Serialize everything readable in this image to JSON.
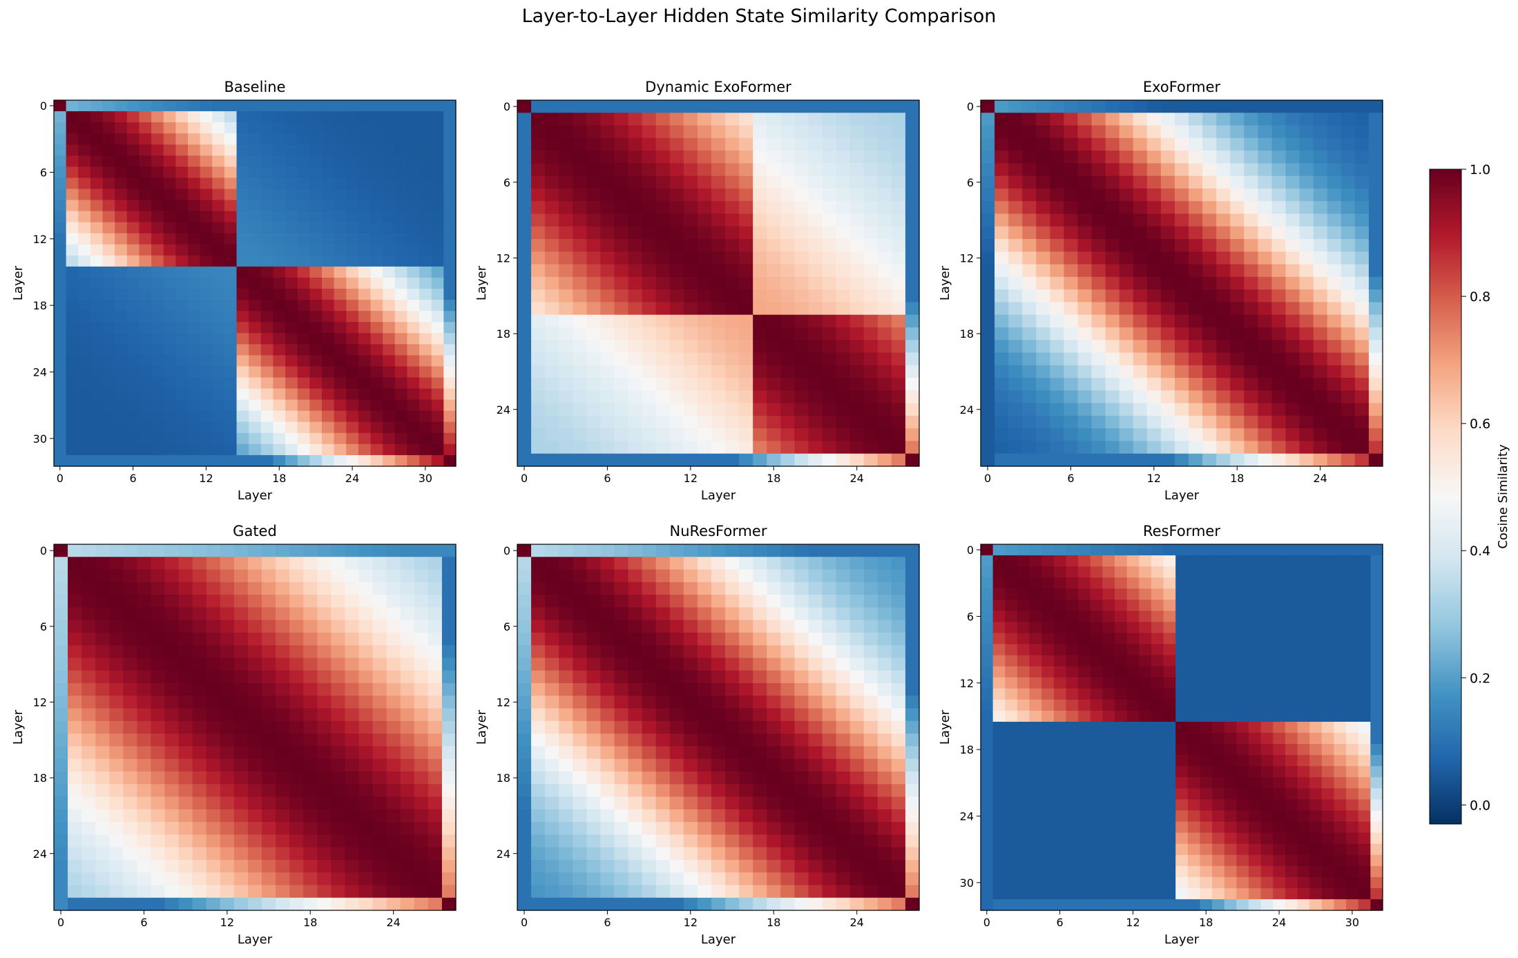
{
  "title": "Layer-to-Layer Hidden State Similarity Comparison",
  "colormap": {
    "name": "RdBu_r",
    "label": "Cosine Similarity",
    "range": [
      -0.03,
      1.0
    ],
    "ticks": [
      "0.0",
      "0.2",
      "0.4",
      "0.6",
      "0.8",
      "1.0"
    ],
    "stops": [
      "#053061",
      "#2166ac",
      "#4393c3",
      "#92c5de",
      "#d1e5f0",
      "#f7f7f7",
      "#fddbc7",
      "#f4a582",
      "#d6604d",
      "#b2182b",
      "#67001f"
    ]
  },
  "chart_data": [
    {
      "type": "heatmap",
      "title": "Baseline",
      "xlabel": "Layer",
      "ylabel": "Layer",
      "n_layers": 33,
      "ticks": [
        "0",
        "6",
        "12",
        "18",
        "24",
        "30"
      ],
      "profile": {
        "sharpness": 0.055,
        "floor": 0.05,
        "first_row": 0.25,
        "first_decay": 0.012,
        "first_floor": 0.1,
        "last_row_max": 0.9,
        "last_reach": 14,
        "split": 15,
        "cross": 0.1
      }
    },
    {
      "type": "heatmap",
      "title": "Dynamic ExoFormer",
      "xlabel": "Layer",
      "ylabel": "Layer",
      "n_layers": 29,
      "ticks": [
        "0",
        "6",
        "12",
        "18",
        "24"
      ],
      "profile": {
        "sharpness": 0.035,
        "floor": 0.3,
        "first_row": 0.1,
        "first_decay": 0.0,
        "first_floor": 0.1,
        "last_row_max": 0.75,
        "last_reach": 12,
        "split": 17,
        "cross": 0.55
      }
    },
    {
      "type": "heatmap",
      "title": "ExoFormer",
      "xlabel": "Layer",
      "ylabel": "Layer",
      "n_layers": 29,
      "ticks": [
        "0",
        "6",
        "12",
        "18",
        "24"
      ],
      "profile": {
        "sharpness": 0.05,
        "floor": 0.05,
        "first_row": 0.2,
        "first_decay": 0.012,
        "first_floor": 0.05,
        "last_row_max": 0.85,
        "last_reach": 14,
        "split": 29,
        "cross": 1.0
      }
    },
    {
      "type": "heatmap",
      "title": "Gated",
      "xlabel": "Layer",
      "ylabel": "Layer",
      "n_layers": 29,
      "ticks": [
        "0",
        "6",
        "12",
        "18",
        "24"
      ],
      "profile": {
        "sharpness": 0.028,
        "floor": 0.25,
        "first_row": 0.35,
        "first_decay": 0.008,
        "first_floor": 0.15,
        "last_row_max": 0.75,
        "last_reach": 20,
        "split": 29,
        "cross": 1.0
      }
    },
    {
      "type": "heatmap",
      "title": "NuResFormer",
      "xlabel": "Layer",
      "ylabel": "Layer",
      "n_layers": 29,
      "ticks": [
        "0",
        "6",
        "12",
        "18",
        "24"
      ],
      "profile": {
        "sharpness": 0.04,
        "floor": 0.15,
        "first_row": 0.35,
        "first_decay": 0.012,
        "first_floor": 0.1,
        "last_row_max": 0.75,
        "last_reach": 16,
        "split": 29,
        "cross": 1.0
      }
    },
    {
      "type": "heatmap",
      "title": "ResFormer",
      "xlabel": "Layer",
      "ylabel": "Layer",
      "n_layers": 33,
      "ticks": [
        "0",
        "6",
        "12",
        "18",
        "24",
        "30"
      ],
      "profile": {
        "sharpness": 0.03,
        "floor": 0.05,
        "first_row": 0.2,
        "first_decay": 0.008,
        "first_floor": 0.08,
        "last_row_max": 0.85,
        "last_reach": 14,
        "split": 16,
        "cross": 0.0
      }
    }
  ]
}
